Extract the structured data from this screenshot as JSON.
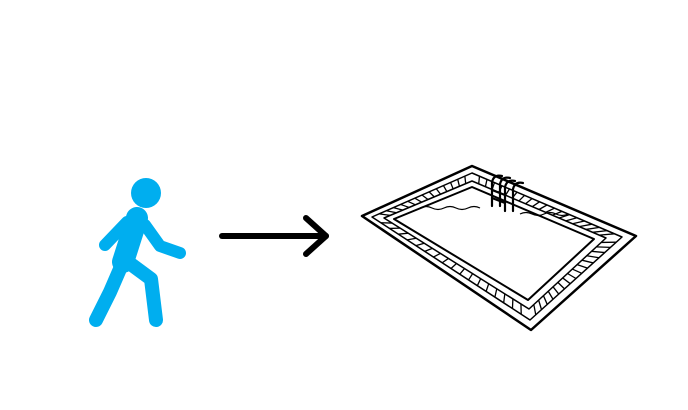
{
  "diagram": {
    "background": "#ffffff",
    "walker": {
      "icon": "walking-person-icon",
      "color": "#00aeef"
    },
    "arrow": {
      "icon": "right-arrow-icon",
      "color": "#000000"
    },
    "pool": {
      "icon": "swimming-pool-icon",
      "color": "#000000"
    }
  }
}
